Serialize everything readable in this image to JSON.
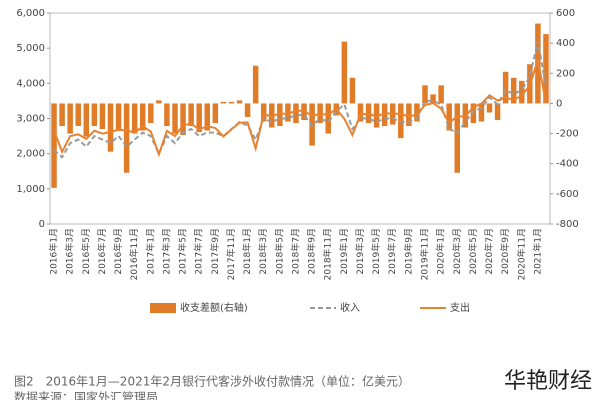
{
  "chart_data": {
    "type": "combo",
    "caption": "图2　2016年1月—2021年2月银行代客涉外收付款情况（单位：亿美元）",
    "source": "数据来源：国家外汇管理局",
    "watermark": "华艳财经",
    "categories": [
      "2016年1月",
      null,
      "2016年3月",
      null,
      "2016年5月",
      null,
      "2016年7月",
      null,
      "2016年9月",
      null,
      "2016年11月",
      null,
      "2017年1月",
      null,
      "2017年3月",
      null,
      "2017年5月",
      null,
      "2017年7月",
      null,
      "2017年9月",
      null,
      "2017年11月",
      null,
      "2018年1月",
      null,
      "2018年3月",
      null,
      "2018年5月",
      null,
      "2018年7月",
      null,
      "2018年9月",
      null,
      "2018年11月",
      null,
      "2019年1月",
      null,
      "2019年3月",
      null,
      "2019年5月",
      null,
      "2019年7月",
      null,
      "2019年9月",
      null,
      "2019年11月",
      null,
      "2020年1月",
      null,
      "2020年3月",
      null,
      "2020年5月",
      null,
      "2020年7月",
      null,
      "2020年9月",
      null,
      "2020年11月",
      null,
      "2021年1月",
      null
    ],
    "ylim": [
      0,
      6000
    ],
    "yticks": [
      0,
      {
        "value": 1000,
        "label": "1,000"
      },
      {
        "value": 2000,
        "label": "2,000"
      },
      {
        "value": 3000,
        "label": "3,000"
      },
      {
        "value": 4000,
        "label": "4,000"
      },
      {
        "value": 5000,
        "label": "5,000"
      },
      {
        "value": 6000,
        "label": "6,000"
      }
    ],
    "y2lim": [
      -800,
      600
    ],
    "y2ticks": [
      -800,
      -600,
      -400,
      -200,
      0,
      200,
      400,
      600
    ],
    "series": [
      {
        "name": "收支差额(右轴)",
        "type": "bar",
        "axis": "y2",
        "color": "#e07b28",
        "values": [
          -560,
          -150,
          -200,
          -150,
          -220,
          -150,
          -170,
          -320,
          -180,
          -460,
          -200,
          -180,
          -130,
          20,
          -150,
          -200,
          -210,
          -150,
          -190,
          -180,
          -130,
          10,
          10,
          20,
          -90,
          250,
          -120,
          -160,
          -150,
          -120,
          -130,
          -110,
          -280,
          -130,
          -200,
          -80,
          410,
          170,
          -120,
          -130,
          -160,
          -150,
          -140,
          -230,
          -150,
          -120,
          120,
          60,
          120,
          -180,
          -460,
          -160,
          -130,
          -120,
          -60,
          -110,
          210,
          170,
          150,
          260,
          530,
          460
        ]
      },
      {
        "name": "收入",
        "type": "line",
        "dash": true,
        "color": "#9a9a9a",
        "values": [
          2100,
          1900,
          2300,
          2400,
          2200,
          2500,
          2400,
          2300,
          2500,
          2200,
          2400,
          2600,
          2500,
          2000,
          2500,
          2300,
          2600,
          2700,
          2500,
          2600,
          2600,
          2500,
          2700,
          2900,
          2800,
          2400,
          3000,
          2900,
          3000,
          3000,
          3100,
          3100,
          2800,
          3000,
          2900,
          3200,
          3400,
          2700,
          3000,
          3000,
          2900,
          3000,
          3000,
          2900,
          2900,
          3000,
          3500,
          3500,
          3400,
          2700,
          2600,
          2900,
          3200,
          3300,
          3600,
          3400,
          3800,
          3700,
          3800,
          4200,
          5200,
          3900
        ]
      },
      {
        "name": "支出",
        "type": "line",
        "dash": false,
        "color": "#e8822f",
        "values": [
          2660,
          2050,
          2500,
          2550,
          2420,
          2650,
          2570,
          2620,
          2680,
          2660,
          2600,
          2780,
          2630,
          1980,
          2650,
          2500,
          2810,
          2850,
          2690,
          2780,
          2730,
          2490,
          2690,
          2880,
          2890,
          2150,
          3120,
          3060,
          3150,
          3120,
          3230,
          3210,
          3080,
          3130,
          3100,
          3280,
          2990,
          2530,
          3120,
          3130,
          3060,
          3150,
          3140,
          3130,
          3050,
          3120,
          3380,
          3440,
          3280,
          2880,
          3060,
          3060,
          3330,
          3420,
          3660,
          3510,
          3590,
          3530,
          3650,
          3940,
          4670,
          3440
        ]
      }
    ]
  }
}
